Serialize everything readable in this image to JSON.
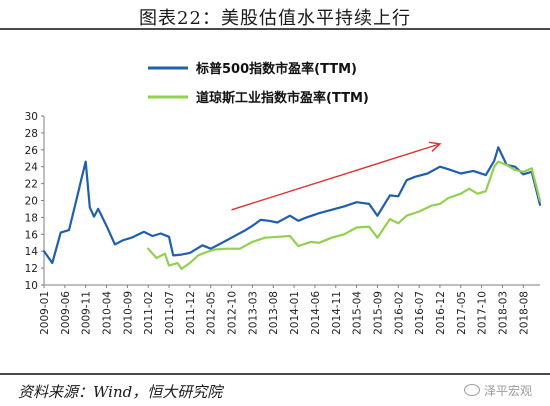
{
  "title": "图表22：美股估值水平持续上行",
  "source": "资料来源：Wind，恒大研究院",
  "watermark": "泽平宏观",
  "colors": {
    "sp500": "#1f5fae",
    "dow": "#92d050",
    "arrow": "#e03030"
  },
  "chart_data": {
    "type": "line",
    "ylim": [
      10,
      30
    ],
    "yticks": [
      10,
      12,
      14,
      16,
      18,
      20,
      22,
      24,
      26,
      28,
      30
    ],
    "xlim": [
      "2009-01",
      "2018-12"
    ],
    "xticks": [
      "2009-01",
      "2009-06",
      "2009-11",
      "2010-04",
      "2010-09",
      "2011-02",
      "2011-07",
      "2011-12",
      "2012-05",
      "2012-10",
      "2013-03",
      "2013-08",
      "2014-01",
      "2014-06",
      "2014-11",
      "2015-04",
      "2015-09",
      "2016-02",
      "2016-07",
      "2016-12",
      "2017-05",
      "2017-10",
      "2018-03",
      "2018-08"
    ],
    "legend_position": "top-left",
    "annotation": "upward trend arrow from 2012-10 to 2016-12",
    "series": [
      {
        "name": "标普500指数市盈率(TTM)",
        "points": [
          [
            "2009-01",
            14.0
          ],
          [
            "2009-03",
            12.6
          ],
          [
            "2009-05",
            16.2
          ],
          [
            "2009-07",
            16.5
          ],
          [
            "2009-09",
            20.5
          ],
          [
            "2009-10",
            22.6
          ],
          [
            "2009-11",
            24.6
          ],
          [
            "2009-12",
            19.2
          ],
          [
            "2010-01",
            18.1
          ],
          [
            "2010-02",
            19.0
          ],
          [
            "2010-04",
            17.0
          ],
          [
            "2010-06",
            14.8
          ],
          [
            "2010-08",
            15.3
          ],
          [
            "2010-10",
            15.6
          ],
          [
            "2011-01",
            16.3
          ],
          [
            "2011-03",
            15.8
          ],
          [
            "2011-05",
            16.1
          ],
          [
            "2011-07",
            15.7
          ],
          [
            "2011-08",
            13.5
          ],
          [
            "2011-10",
            13.6
          ],
          [
            "2011-12",
            13.8
          ],
          [
            "2012-03",
            14.7
          ],
          [
            "2012-05",
            14.3
          ],
          [
            "2012-07",
            14.8
          ],
          [
            "2012-10",
            15.6
          ],
          [
            "2013-01",
            16.4
          ],
          [
            "2013-03",
            17.0
          ],
          [
            "2013-05",
            17.7
          ],
          [
            "2013-07",
            17.6
          ],
          [
            "2013-09",
            17.4
          ],
          [
            "2013-12",
            18.2
          ],
          [
            "2014-02",
            17.6
          ],
          [
            "2014-04",
            18.0
          ],
          [
            "2014-07",
            18.5
          ],
          [
            "2014-10",
            18.9
          ],
          [
            "2015-01",
            19.3
          ],
          [
            "2015-04",
            19.8
          ],
          [
            "2015-07",
            19.6
          ],
          [
            "2015-09",
            18.2
          ],
          [
            "2015-12",
            20.6
          ],
          [
            "2016-02",
            20.5
          ],
          [
            "2016-04",
            22.4
          ],
          [
            "2016-06",
            22.8
          ],
          [
            "2016-09",
            23.2
          ],
          [
            "2016-12",
            24.0
          ],
          [
            "2017-02",
            23.7
          ],
          [
            "2017-05",
            23.2
          ],
          [
            "2017-08",
            23.5
          ],
          [
            "2017-11",
            23.0
          ],
          [
            "2018-01",
            24.7
          ],
          [
            "2018-02",
            26.3
          ],
          [
            "2018-04",
            24.2
          ],
          [
            "2018-06",
            24.0
          ],
          [
            "2018-08",
            23.1
          ],
          [
            "2018-10",
            23.4
          ],
          [
            "2018-12",
            19.5
          ]
        ]
      },
      {
        "name": "道琼斯工业指数市盈率(TTM)",
        "points": [
          [
            "2011-02",
            14.3
          ],
          [
            "2011-04",
            13.2
          ],
          [
            "2011-06",
            13.7
          ],
          [
            "2011-07",
            12.3
          ],
          [
            "2011-09",
            12.6
          ],
          [
            "2011-10",
            11.9
          ],
          [
            "2011-12",
            12.6
          ],
          [
            "2012-02",
            13.5
          ],
          [
            "2012-04",
            13.9
          ],
          [
            "2012-06",
            14.2
          ],
          [
            "2012-09",
            14.3
          ],
          [
            "2012-12",
            14.3
          ],
          [
            "2013-03",
            15.1
          ],
          [
            "2013-06",
            15.6
          ],
          [
            "2013-09",
            15.7
          ],
          [
            "2013-12",
            15.8
          ],
          [
            "2014-02",
            14.6
          ],
          [
            "2014-05",
            15.1
          ],
          [
            "2014-07",
            15.0
          ],
          [
            "2014-10",
            15.6
          ],
          [
            "2015-01",
            16.0
          ],
          [
            "2015-04",
            16.8
          ],
          [
            "2015-07",
            16.9
          ],
          [
            "2015-09",
            15.6
          ],
          [
            "2015-12",
            17.8
          ],
          [
            "2016-02",
            17.3
          ],
          [
            "2016-04",
            18.2
          ],
          [
            "2016-07",
            18.7
          ],
          [
            "2016-10",
            19.4
          ],
          [
            "2016-12",
            19.6
          ],
          [
            "2017-02",
            20.3
          ],
          [
            "2017-05",
            20.8
          ],
          [
            "2017-07",
            21.4
          ],
          [
            "2017-09",
            20.8
          ],
          [
            "2017-11",
            21.1
          ],
          [
            "2018-01",
            24.0
          ],
          [
            "2018-02",
            24.6
          ],
          [
            "2018-04",
            24.2
          ],
          [
            "2018-06",
            23.6
          ],
          [
            "2018-08",
            23.4
          ],
          [
            "2018-10",
            23.8
          ],
          [
            "2018-12",
            20.0
          ]
        ]
      }
    ]
  }
}
